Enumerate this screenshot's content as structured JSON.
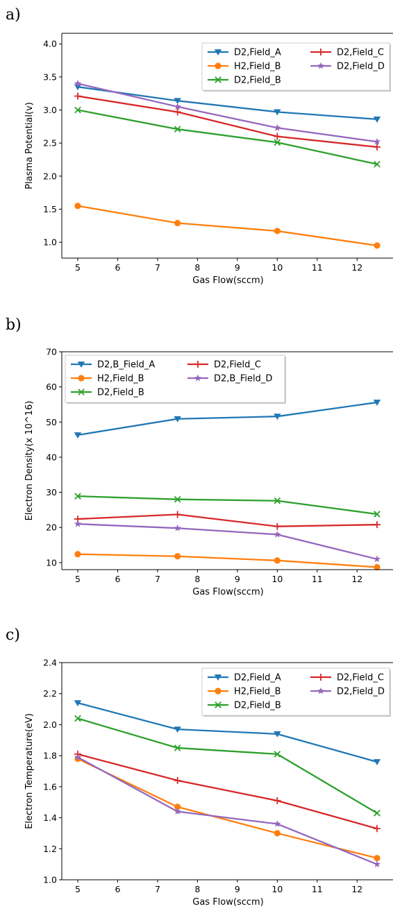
{
  "panels": [
    {
      "label": "a)"
    },
    {
      "label": "b)"
    },
    {
      "label": "c)"
    }
  ],
  "chart_data": [
    {
      "type": "line",
      "xlabel": "Gas Flow(sccm)",
      "ylabel": "Plasma Potential(v)",
      "xlim": [
        4.6,
        12.9
      ],
      "ylim": [
        0.76,
        4.16
      ],
      "xticks": [
        5,
        6,
        7,
        8,
        9,
        10,
        11,
        12
      ],
      "xtick_labels": [
        "5",
        "6",
        "7",
        "8",
        "9",
        "10",
        "11",
        "12"
      ],
      "yticks": [
        1.0,
        1.5,
        2.0,
        2.5,
        3.0,
        3.5,
        4.0
      ],
      "ytick_labels": [
        "1.0",
        "1.5",
        "2.0",
        "2.5",
        "3.0",
        "3.5",
        "4.0"
      ],
      "legend_position": "top-right",
      "legend_columns": 2,
      "x": [
        5,
        7.5,
        10,
        12.5
      ],
      "series": [
        {
          "name": "D2,Field_A",
          "color": "#1f77b4",
          "marker": "triangle-down",
          "values": [
            3.35,
            3.14,
            2.97,
            2.86
          ]
        },
        {
          "name": "H2,Field_B",
          "color": "#ff7f0e",
          "marker": "circle",
          "values": [
            1.55,
            1.29,
            1.17,
            0.95
          ]
        },
        {
          "name": "D2,Field_B",
          "color": "#2ca02c",
          "marker": "x",
          "values": [
            3.0,
            2.71,
            2.51,
            2.18
          ]
        },
        {
          "name": "D2,Field_C",
          "color": "#d62728",
          "marker": "plus",
          "values": [
            3.21,
            2.97,
            2.6,
            2.44
          ]
        },
        {
          "name": "D2,Field_D",
          "color": "#9467bd",
          "marker": "star",
          "values": [
            3.4,
            3.05,
            2.73,
            2.52
          ]
        }
      ]
    },
    {
      "type": "line",
      "xlabel": "Gas Flow(sccm)",
      "ylabel": "Electron Density(x 10^16)",
      "xlim": [
        4.6,
        12.9
      ],
      "ylim": [
        8,
        70
      ],
      "xticks": [
        5,
        6,
        7,
        8,
        9,
        10,
        11,
        12
      ],
      "xtick_labels": [
        "5",
        "6",
        "7",
        "8",
        "9",
        "10",
        "11",
        "12"
      ],
      "yticks": [
        10,
        20,
        30,
        40,
        50,
        60,
        70
      ],
      "ytick_labels": [
        "10",
        "20",
        "30",
        "40",
        "50",
        "60",
        "70"
      ],
      "legend_position": "top-left",
      "legend_columns": 2,
      "x": [
        5,
        7.5,
        10,
        12.5
      ],
      "series": [
        {
          "name": "D2,B_Field_A",
          "color": "#1f77b4",
          "marker": "triangle-down",
          "values": [
            46.3,
            50.9,
            51.6,
            55.6
          ]
        },
        {
          "name": "H2,Field_B",
          "color": "#ff7f0e",
          "marker": "circle",
          "values": [
            12.4,
            11.8,
            10.6,
            8.7
          ]
        },
        {
          "name": "D2,Field_B",
          "color": "#2ca02c",
          "marker": "x",
          "values": [
            28.9,
            28.0,
            27.6,
            23.8
          ]
        },
        {
          "name": "D2,Field_C",
          "color": "#d62728",
          "marker": "plus",
          "values": [
            22.4,
            23.7,
            20.3,
            20.8
          ]
        },
        {
          "name": "D2,B_Field_D",
          "color": "#9467bd",
          "marker": "star",
          "values": [
            21.0,
            19.8,
            18.0,
            11.0
          ]
        }
      ]
    },
    {
      "type": "line",
      "xlabel": "Gas Flow(sccm)",
      "ylabel": "Electron Temperature(eV)",
      "xlim": [
        4.6,
        12.9
      ],
      "ylim": [
        1.0,
        2.4
      ],
      "xticks": [
        5,
        6,
        7,
        8,
        9,
        10,
        11,
        12
      ],
      "xtick_labels": [
        "5",
        "6",
        "7",
        "8",
        "9",
        "10",
        "11",
        "12"
      ],
      "yticks": [
        1.0,
        1.2,
        1.4,
        1.6,
        1.8,
        2.0,
        2.2,
        2.4
      ],
      "ytick_labels": [
        "1.0",
        "1.2",
        "1.4",
        "1.6",
        "1.8",
        "2.0",
        "2.2",
        "2.4"
      ],
      "legend_position": "top-right",
      "legend_columns": 2,
      "x": [
        5,
        7.5,
        10,
        12.5
      ],
      "series": [
        {
          "name": "D2,Field_A",
          "color": "#1f77b4",
          "marker": "triangle-down",
          "values": [
            2.14,
            1.97,
            1.94,
            1.76
          ]
        },
        {
          "name": "H2,Field_B",
          "color": "#ff7f0e",
          "marker": "circle",
          "values": [
            1.78,
            1.47,
            1.3,
            1.14
          ]
        },
        {
          "name": "D2,Field_B",
          "color": "#2ca02c",
          "marker": "x",
          "values": [
            2.04,
            1.85,
            1.81,
            1.43
          ]
        },
        {
          "name": "D2,Field_C",
          "color": "#d62728",
          "marker": "plus",
          "values": [
            1.81,
            1.64,
            1.51,
            1.33
          ]
        },
        {
          "name": "D2,Field_D",
          "color": "#9467bd",
          "marker": "star",
          "values": [
            1.79,
            1.44,
            1.36,
            1.1
          ]
        }
      ]
    }
  ]
}
